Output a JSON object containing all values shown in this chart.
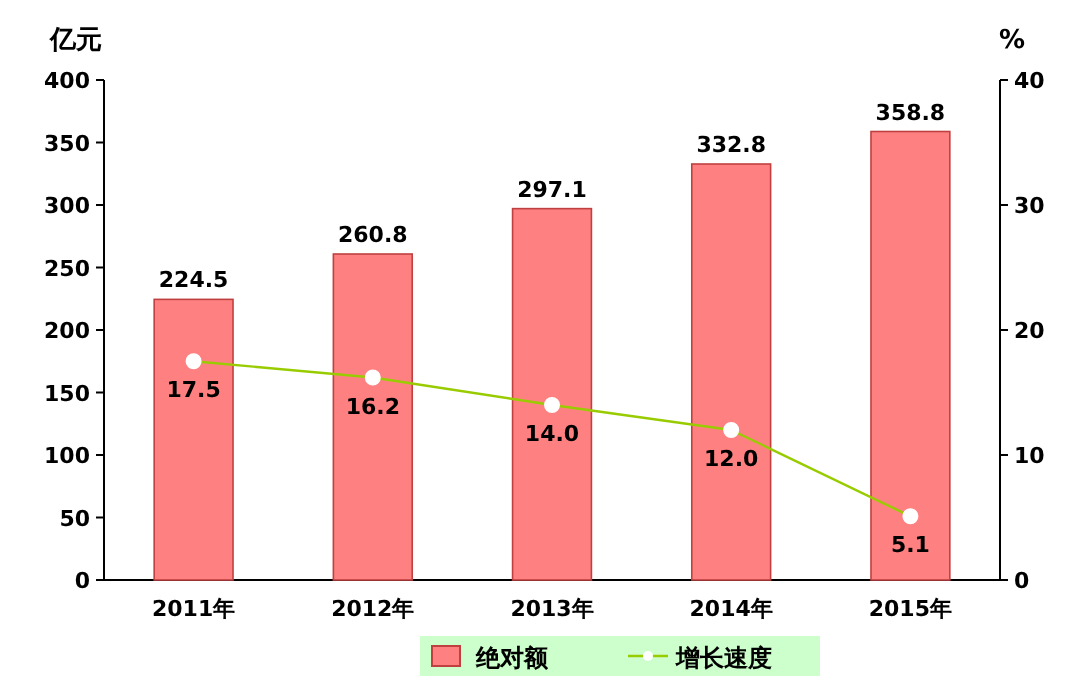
{
  "chart_data": {
    "type": "bar",
    "categories": [
      "2011年",
      "2012年",
      "2013年",
      "2014年",
      "2015年"
    ],
    "series": [
      {
        "name": "绝对额",
        "color": "#ff8080",
        "values": [
          224.5,
          260.8,
          297.1,
          332.8,
          358.8
        ]
      },
      {
        "name": "增长速度",
        "type": "line",
        "axis": "y2",
        "color": "#99cc00",
        "marker": "circle",
        "values": [
          17.5,
          16.2,
          14.0,
          12.0,
          5.1
        ],
        "value_labels": [
          "17.5",
          "16.2",
          "14.0",
          "12.0",
          "5.1"
        ]
      }
    ],
    "ylabel": "亿元",
    "y2label": "%",
    "ylim": [
      0,
      400
    ],
    "yticks": [
      0,
      50,
      100,
      150,
      200,
      250,
      300,
      350,
      400
    ],
    "y2lim": [
      0,
      40
    ],
    "y2ticks": [
      0,
      10,
      20,
      30,
      40
    ],
    "data_labels": true,
    "legend": "bottom"
  }
}
